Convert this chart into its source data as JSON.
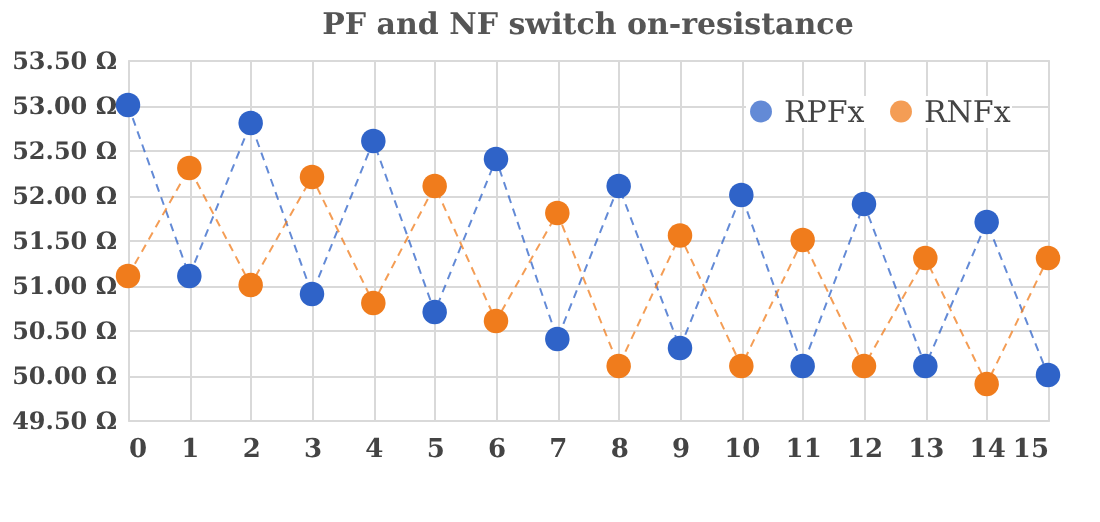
{
  "chart_data": {
    "type": "line",
    "title": "PF and NF switch on-resistance",
    "x": [
      0,
      1,
      2,
      3,
      4,
      5,
      6,
      7,
      8,
      9,
      10,
      11,
      12,
      13,
      14,
      15
    ],
    "series": [
      {
        "name": "RPFx",
        "color": "#2f63c8",
        "values": [
          53.0,
          51.1,
          52.8,
          50.9,
          52.6,
          50.7,
          52.4,
          50.4,
          52.1,
          50.3,
          52.0,
          50.1,
          51.9,
          50.1,
          51.7,
          50.0
        ]
      },
      {
        "name": "RNFx",
        "color": "#f07c1c",
        "values": [
          51.1,
          52.3,
          51.0,
          52.2,
          50.8,
          52.1,
          50.6,
          51.8,
          50.1,
          51.55,
          50.1,
          51.5,
          50.1,
          51.3,
          49.9,
          51.3
        ]
      }
    ],
    "xlim": [
      0,
      15
    ],
    "xticks": [
      0,
      1,
      2,
      3,
      4,
      5,
      6,
      7,
      8,
      9,
      10,
      11,
      12,
      13,
      14,
      15
    ],
    "ylim": [
      49.5,
      53.5
    ],
    "yticks": [
      {
        "value": 49.5,
        "label": "49.50 Ω"
      },
      {
        "value": 50.0,
        "label": "50.00 Ω"
      },
      {
        "value": 50.5,
        "label": "50.50 Ω"
      },
      {
        "value": 51.0,
        "label": "51.00 Ω"
      },
      {
        "value": 51.5,
        "label": "51.50 Ω"
      },
      {
        "value": 52.0,
        "label": "52.00 Ω"
      },
      {
        "value": 52.5,
        "label": "52.50 Ω"
      },
      {
        "value": 53.0,
        "label": "53.00 Ω"
      },
      {
        "value": 53.5,
        "label": "53.50 Ω"
      }
    ],
    "grid": true,
    "legend": "top right",
    "marker": "circle",
    "line_style": "dashed"
  }
}
